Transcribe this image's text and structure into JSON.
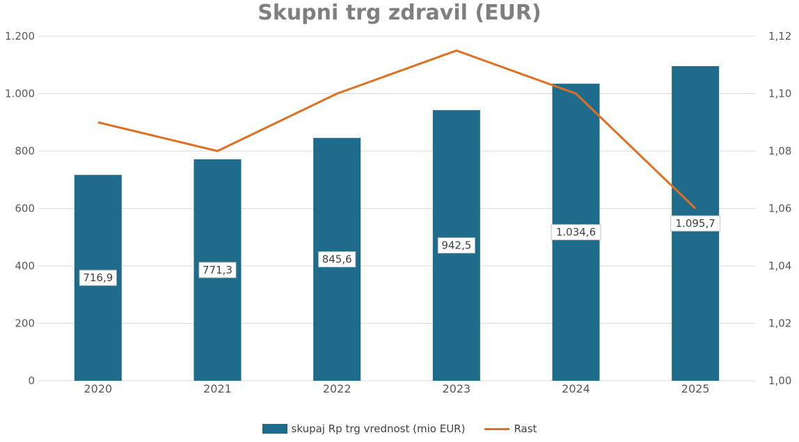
{
  "chart_data": {
    "type": "bar",
    "title": "Skupni trg zdravil (EUR)",
    "categories": [
      "2020",
      "2021",
      "2022",
      "2023",
      "2024",
      "2025"
    ],
    "series": [
      {
        "name": "skupaj Rp trg vrednost (mio EUR)",
        "type": "bar",
        "axis": "left",
        "values": [
          716.9,
          771.3,
          845.6,
          942.5,
          1034.6,
          1095.7
        ],
        "labels": [
          "716,9",
          "771,3",
          "845,6",
          "942,5",
          "1.034,6",
          "1.095,7"
        ]
      },
      {
        "name": "Rast",
        "type": "line",
        "axis": "right",
        "values": [
          1.09,
          1.08,
          1.1,
          1.115,
          1.1,
          1.06
        ]
      }
    ],
    "y_left": {
      "ylim": [
        0,
        1200
      ],
      "ticks": [
        0,
        200,
        400,
        600,
        800,
        1000,
        1200
      ],
      "tick_labels": [
        "0",
        "200",
        "400",
        "600",
        "800",
        "1.000",
        "1.200"
      ]
    },
    "y_right": {
      "ylim": [
        1.0,
        1.12
      ],
      "ticks": [
        1.0,
        1.02,
        1.04,
        1.06,
        1.08,
        1.1,
        1.12
      ],
      "tick_labels": [
        "1,00",
        "1,02",
        "1,04",
        "1,06",
        "1,08",
        "1,10",
        "1,12"
      ]
    },
    "grid": true,
    "legend_position": "bottom",
    "colors": {
      "bar": "#1f6b8b",
      "line": "#e07021",
      "grid": "#d9d9d9",
      "title": "#7f7f7f"
    }
  }
}
